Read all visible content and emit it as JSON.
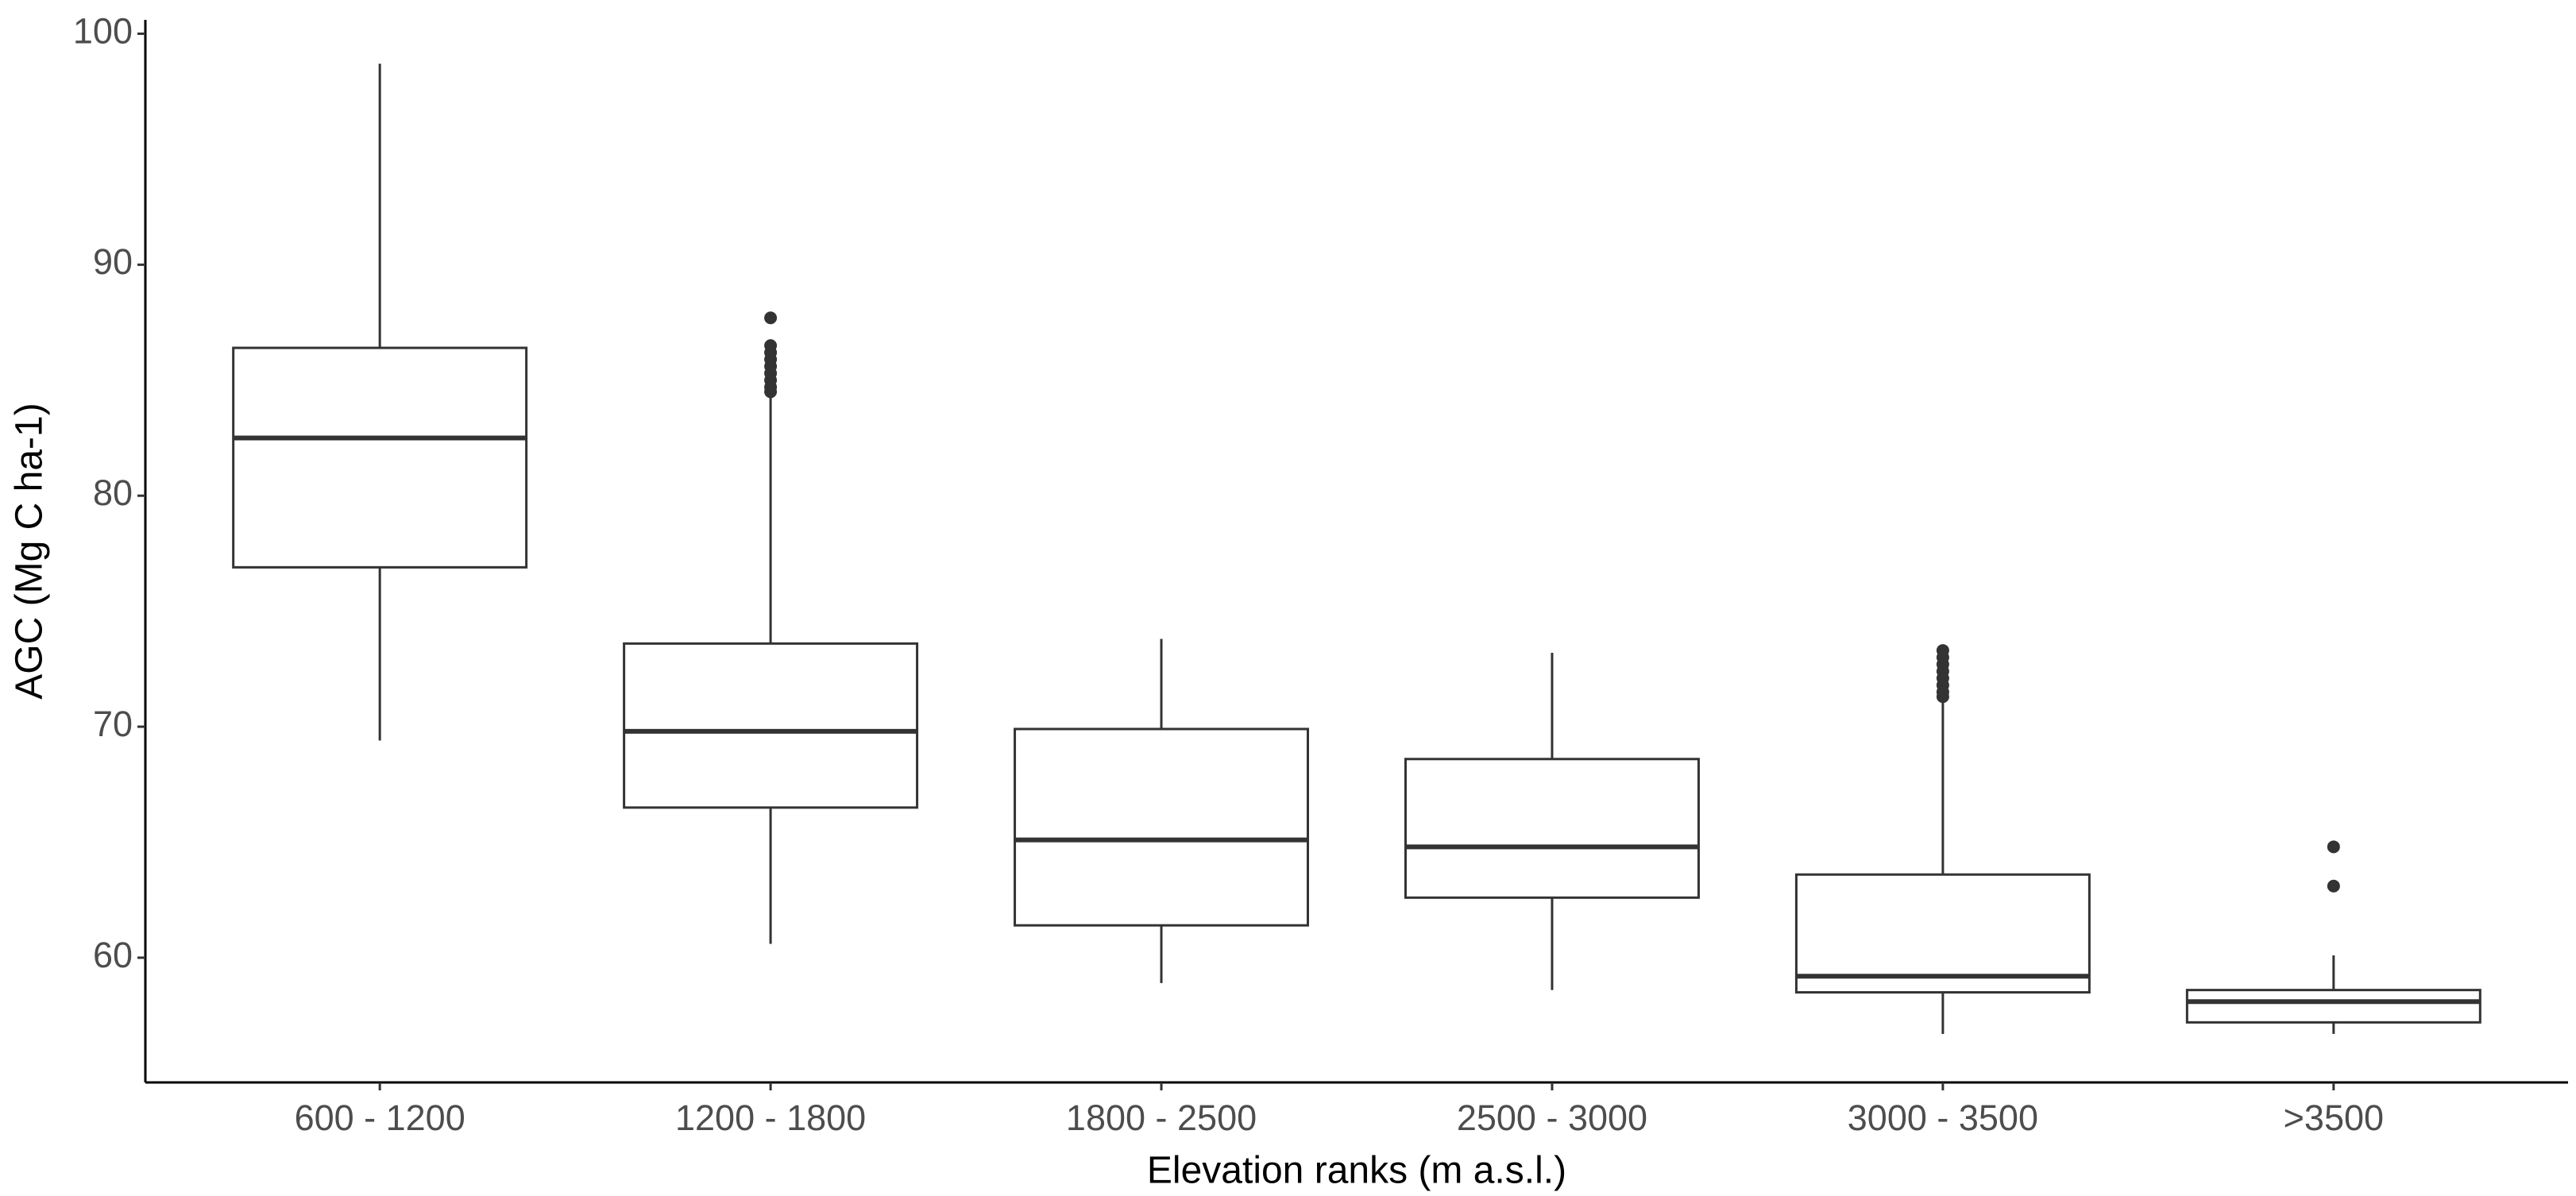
{
  "chart_data": {
    "type": "box",
    "x_label": "Elevation ranks (m a.s.l.)",
    "y_label": "AGC (Mg C ha-1)",
    "categories": [
      "600 - 1200",
      "1200 - 1800",
      "1800 - 2500",
      "2500 - 3000",
      "3000 - 3500",
      ">3500"
    ],
    "boxes": [
      {
        "whisker_low": 69.4,
        "q1": 76.9,
        "median": 82.5,
        "q3": 86.4,
        "whisker_high": 98.7,
        "outliers": []
      },
      {
        "whisker_low": 60.6,
        "q1": 66.5,
        "median": 69.8,
        "q3": 73.6,
        "whisker_high": 84.4,
        "outliers": [
          87.7,
          86.5,
          86.2,
          85.9,
          85.6,
          85.3,
          85.0,
          84.7,
          84.5
        ]
      },
      {
        "whisker_low": 58.9,
        "q1": 61.4,
        "median": 65.1,
        "q3": 69.9,
        "whisker_high": 73.8,
        "outliers": []
      },
      {
        "whisker_low": 58.6,
        "q1": 62.6,
        "median": 64.8,
        "q3": 68.6,
        "whisker_high": 73.2,
        "outliers": []
      },
      {
        "whisker_low": 56.7,
        "q1": 58.5,
        "median": 59.2,
        "q3": 63.6,
        "whisker_high": 71.1,
        "outliers": [
          73.3,
          73.0,
          72.7,
          72.4,
          72.1,
          71.8,
          71.5,
          71.3
        ]
      },
      {
        "whisker_low": 56.7,
        "q1": 57.2,
        "median": 58.1,
        "q3": 58.6,
        "whisker_high": 60.1,
        "outliers": [
          64.8,
          63.1
        ]
      }
    ],
    "color": "#333333",
    "ylim": [
      54.6,
      100.6
    ],
    "yticks": [
      60,
      70,
      80,
      90,
      100
    ],
    "grid": false
  }
}
